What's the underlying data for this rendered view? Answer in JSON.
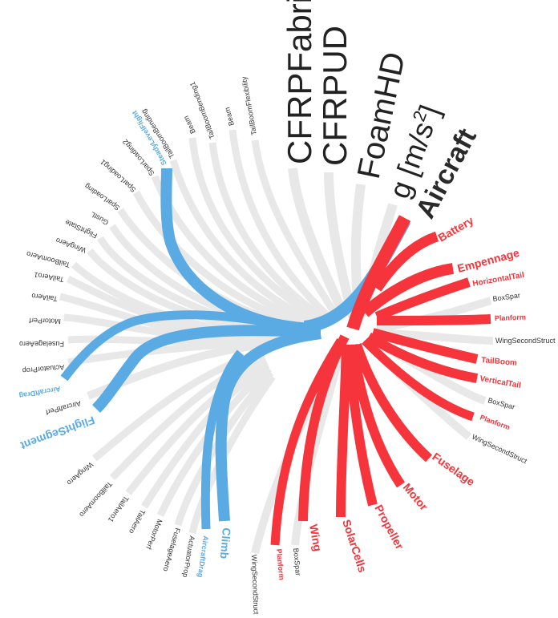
{
  "colors": {
    "background": "#ffffff",
    "gray_branch": "#e8e8e8",
    "blue_branch": "#5aabe4",
    "red_branch": "#f5343b",
    "gray_text": "#333333",
    "root_text": "#2a2a2a"
  },
  "root_label": "Aircraft",
  "top_labels": {
    "cfrp_fabric": "CFRPFabric",
    "cfrp_ud": "CFRPUD",
    "foam_hd": "FoamHD",
    "g_units": "g [m/s",
    "g_exp": "2",
    "g_close": "]"
  },
  "red_labels": {
    "battery": "Battery",
    "empennage": "Empennage",
    "horizontal_tail": "HorizontalTail",
    "boxspar_1": "BoxSpar",
    "planform_1": "Planform",
    "wing_second_struct_1": "WingSecondStruct",
    "tailboom": "TailBoom",
    "vertical_tail": "VerticalTail",
    "boxspar_2": "BoxSpar",
    "planform_2": "Planform",
    "wing_second_struct_2": "WingSecondStruct",
    "fuselage": "Fuselage",
    "motor": "Motor",
    "propeller": "Propeller",
    "solar_cells": "SolarCells",
    "wing": "Wing",
    "boxspar_3": "BoxSpar",
    "planform_3": "Planform",
    "wing_second_struct_3": "WingSecondStruct"
  },
  "blue_labels": {
    "steady_level_flight": "SteadyLevelFlight",
    "aircraft_drag_1": "AircraftDrag",
    "flight_segment": "FlightSegment",
    "aircraft_drag_2": "AircraftDrag",
    "climb": "Climb"
  },
  "gray_labels": {
    "tailboom_flexibility": "TailBoomFlexibility",
    "beam_1": "Beam",
    "tailboom_bending_1": "TailBoomBending1",
    "beam_2": "Beam",
    "tailboom_bending": "TailBoomBending",
    "spar_loading_2": "SparLoading2",
    "spar_loading_1": "SparLoading1",
    "spar_loading": "SparLoading",
    "gust_l": "GustL",
    "flight_state": "FlightState",
    "wing_aero_1": "WingAero",
    "tailboom_aero_1": "TailBoomAero",
    "tail_aero_1a": "TailAero1",
    "tail_aero_1b": "TailAero",
    "motor_perf_1": "MotorPerf",
    "fuselage_aero_1": "FuselageAero",
    "actuator_prop_1": "ActuatorProp",
    "aircraft_perf": "AircraftPerf",
    "wing_aero_2": "WingAero",
    "tailboom_aero_2": "TailBoomAero",
    "tail_aero_2a": "TailAero1",
    "tail_aero_2b": "TailAero",
    "motor_perf_2": "MotorPerf",
    "fuselage_aero_2": "FuselageAero",
    "actuator_prop_2": "ActuatorProp"
  }
}
